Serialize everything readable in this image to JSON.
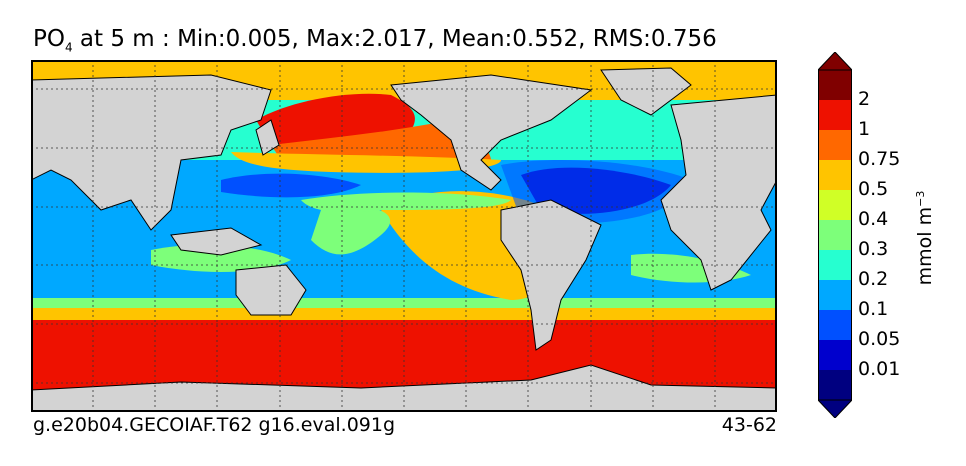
{
  "title": {
    "variable_main": "PO",
    "variable_sub": "4",
    "rest": " at 5 m : Min:0.005, Max:2.017, Mean:0.552, RMS:0.756"
  },
  "footer": {
    "case_name": "g.e20b04.GECOIAF.T62 g16.eval.091g",
    "years": "43-62"
  },
  "colorbar": {
    "unit_base": "mmol m",
    "unit_exp": "−3",
    "ticks": [
      "2",
      "1",
      "0.75",
      "0.5",
      "0.4",
      "0.3",
      "0.2",
      "0.1",
      "0.05",
      "0.01"
    ],
    "colors": [
      "#000080",
      "#0000cd",
      "#0050ff",
      "#00a8ff",
      "#26ffd0",
      "#7dff7a",
      "#d0ff26",
      "#ffc400",
      "#ff6800",
      "#ee1100",
      "#800000"
    ]
  },
  "map": {
    "land_color": "#d3d3d3",
    "ocean_colors": {
      "southern": "#ee1100",
      "subtropical": "#ffc400",
      "mid": "#7dff7a",
      "low": "#00a8ff",
      "very_low": "#0050ff",
      "lowest": "#0000cd",
      "transition": "#26ffd0"
    }
  }
}
